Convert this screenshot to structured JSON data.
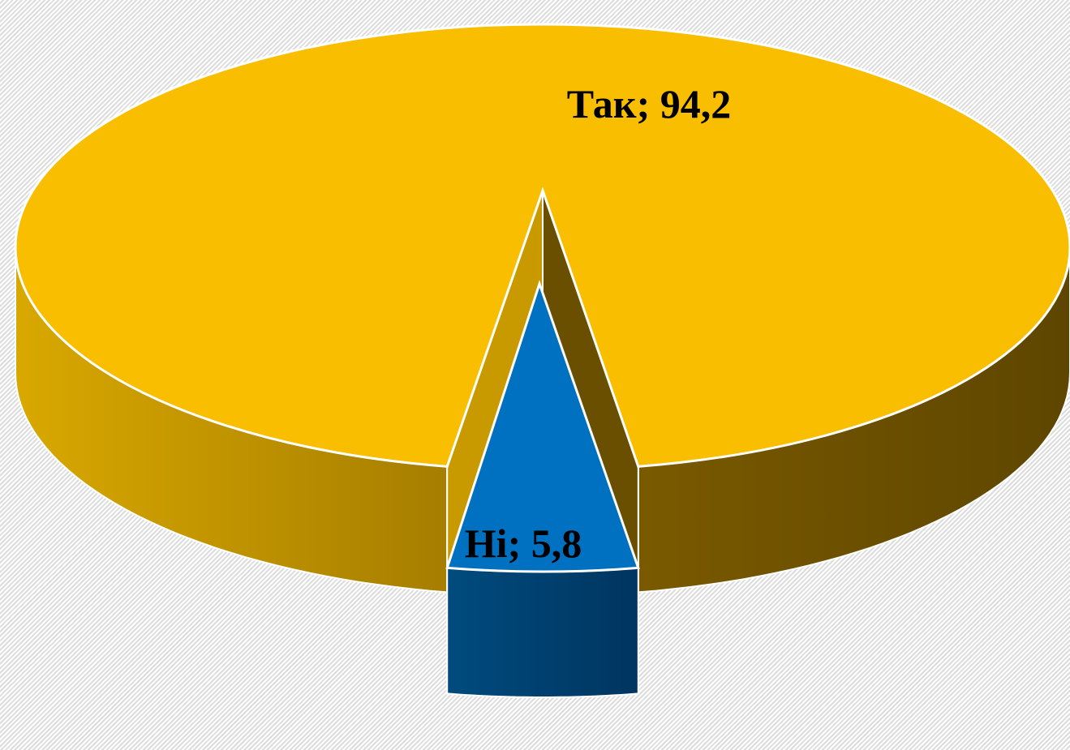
{
  "chart_data": {
    "type": "pie",
    "title": "",
    "labels": [
      "Так",
      "Ні"
    ],
    "values": [
      94.2,
      5.8
    ],
    "data_labels": [
      "Так; 94,2",
      "Ні; 5,8"
    ],
    "colors": [
      "#F9BE00",
      "#0070C0"
    ],
    "style": "3d-exploded",
    "legend": "none"
  }
}
